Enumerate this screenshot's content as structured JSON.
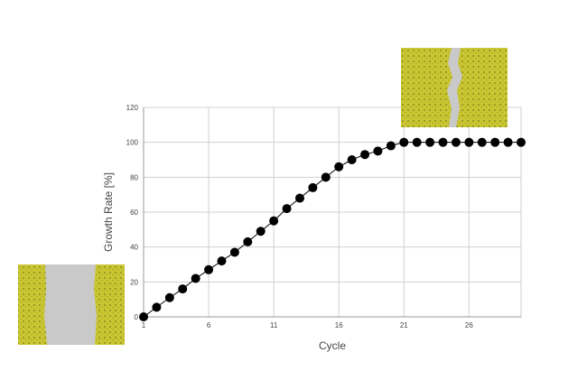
{
  "chart_data": {
    "type": "line",
    "x_label": "Cycle",
    "y_label": "Growth Rate [%]",
    "x": [
      1,
      2,
      3,
      4,
      5,
      6,
      7,
      8,
      9,
      10,
      11,
      12,
      13,
      14,
      15,
      16,
      17,
      18,
      19,
      20,
      21,
      22,
      23,
      24,
      25,
      26,
      27,
      28,
      29,
      30
    ],
    "series": [
      {
        "name": "Growth Rate",
        "color": "#000000",
        "values": [
          0,
          5.5,
          11,
          16,
          22,
          27,
          32,
          37,
          43,
          49,
          55,
          62,
          68,
          74,
          80,
          86,
          90,
          93,
          95,
          98,
          100,
          100,
          100,
          100,
          100,
          100,
          100,
          100,
          100,
          100
        ]
      }
    ],
    "xlim": [
      1,
      30
    ],
    "xticks": [
      1,
      6,
      11,
      16,
      21,
      26
    ],
    "ylim": [
      0,
      120
    ],
    "yticks": [
      0,
      20,
      40,
      60,
      80,
      100,
      120
    ],
    "grid": true
  }
}
